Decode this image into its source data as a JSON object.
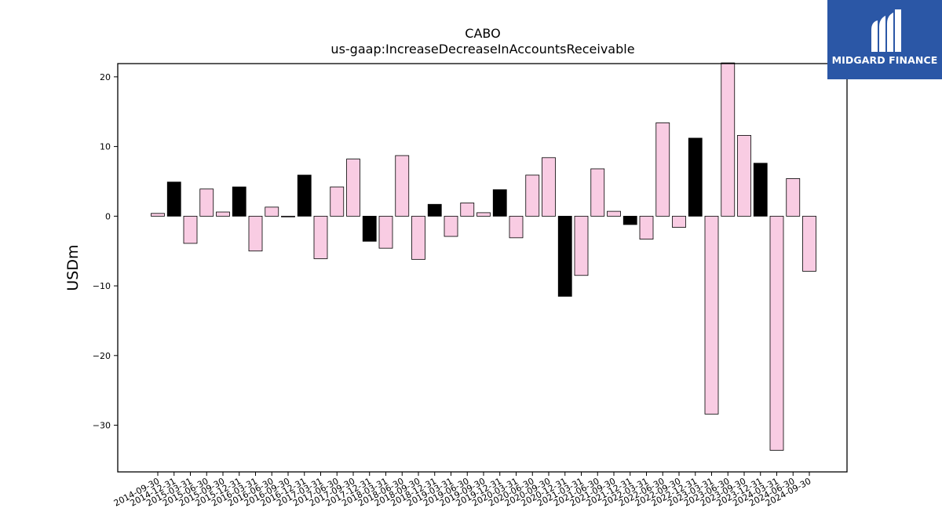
{
  "logo": {
    "text": "MIDGARD FINANCE",
    "background": "#2b57a6",
    "icon": "midgard-mi-monogram-icon"
  },
  "chart_data": {
    "type": "bar",
    "title": "CABO",
    "subtitle": "us-gaap:IncreaseDecreaseInAccountsReceivable",
    "xlabel": "",
    "ylabel": "USDm",
    "ylim": [
      -36.7,
      21.9
    ],
    "yticks": [
      20,
      10,
      0,
      -10,
      -20,
      -30
    ],
    "ytick_labels": [
      "20",
      "10",
      "0",
      "−10",
      "−20",
      "−30"
    ],
    "grid": false,
    "legend": "none",
    "colors": {
      "q4_bar": "#000000",
      "other_bar": "#f9cce3",
      "edge": "#000000"
    },
    "categories": [
      "2014-09-30",
      "2014-12-31",
      "2015-03-31",
      "2015-06-30",
      "2015-09-30",
      "2015-12-31",
      "2016-03-31",
      "2016-06-30",
      "2016-09-30",
      "2016-12-31",
      "2017-03-31",
      "2017-06-30",
      "2017-09-30",
      "2017-12-31",
      "2018-03-31",
      "2018-06-30",
      "2018-09-30",
      "2018-12-31",
      "2019-03-31",
      "2019-06-30",
      "2019-09-30",
      "2019-12-31",
      "2020-03-31",
      "2020-06-30",
      "2020-09-30",
      "2020-12-31",
      "2021-03-31",
      "2021-06-30",
      "2021-09-30",
      "2021-12-31",
      "2022-03-31",
      "2022-06-30",
      "2022-09-30",
      "2022-12-31",
      "2023-03-31",
      "2023-06-30",
      "2023-09-30",
      "2023-12-31",
      "2024-03-31",
      "2024-06-30",
      "2024-09-30"
    ],
    "values": [
      0.4,
      4.9,
      -3.9,
      3.9,
      0.6,
      4.2,
      -5.0,
      1.3,
      -0.1,
      5.9,
      -6.1,
      4.2,
      8.2,
      -3.6,
      -4.6,
      8.7,
      -6.2,
      1.7,
      -2.9,
      1.9,
      0.5,
      3.8,
      -3.1,
      5.9,
      8.4,
      -11.5,
      -8.5,
      6.8,
      0.7,
      -1.2,
      -3.3,
      13.4,
      -1.6,
      11.2,
      -28.4,
      22.0,
      11.6,
      7.6,
      -33.6,
      5.4,
      -7.9
    ]
  }
}
